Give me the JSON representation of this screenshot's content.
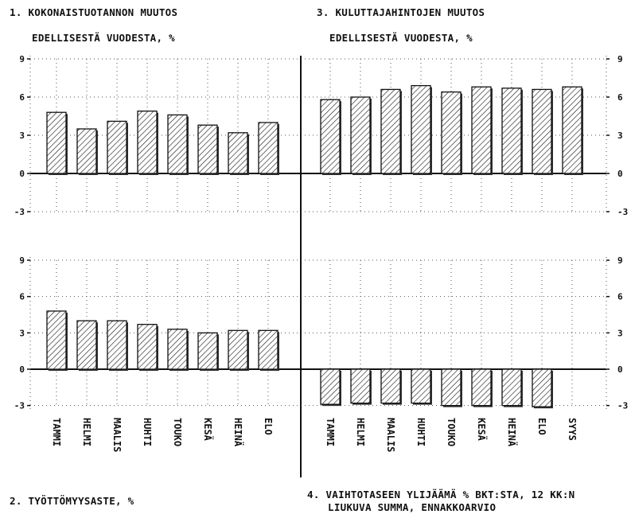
{
  "titles": {
    "t1_line1": "1. KOKONAISTUOTANNON MUUTOS",
    "t1_line2": "EDELLISESTÄ VUODESTA, %",
    "t3_line1": "3. KULUTTAJAHINTOJEN MUUTOS",
    "t3_line2": "EDELLISESTÄ VUODESTA, %",
    "t2": "2. TYÖTTÖMYYSASTE, %",
    "t4_line1": "4. VAIHTOTASEEN YLIJÄÄMÄ % BKT:STA, 12 KK:N",
    "t4_line2": "LIUKUVA SUMMA, ENNAKKOARVIO"
  },
  "chart_data": [
    {
      "type": "bar",
      "title": "1. KOKONAISTUOTANNON MUUTOS EDELLISESTÄ VUODESTA, %",
      "categories": [
        "TAMMI",
        "HELMI",
        "MAALIS",
        "HUHTI",
        "TOUKO",
        "KESÄ",
        "HEINÄ",
        "ELO"
      ],
      "values": [
        4.8,
        3.5,
        4.1,
        4.9,
        4.6,
        3.8,
        3.2,
        4.0
      ],
      "ylim": [
        -3,
        9
      ],
      "yticks": [
        "-3",
        "0",
        "3",
        "6",
        "9"
      ],
      "grid": true,
      "bar_fill": "hatched"
    },
    {
      "type": "bar",
      "title": "3. KULUTTAJAHINTOJEN MUUTOS EDELLISESTÄ VUODESTA, %",
      "categories": [
        "TAMMI",
        "HELMI",
        "MAALIS",
        "HUHTI",
        "TOUKO",
        "KESÄ",
        "HEINÄ",
        "ELO",
        "SYYS"
      ],
      "values": [
        5.8,
        6.0,
        6.6,
        6.9,
        6.4,
        6.8,
        6.7,
        6.6,
        6.8
      ],
      "ylim": [
        -3,
        9
      ],
      "yticks": [
        "-3",
        "0",
        "3",
        "6",
        "9"
      ],
      "grid": true,
      "bar_fill": "hatched"
    },
    {
      "type": "bar",
      "title": "2. TYÖTTÖMYYSASTE, %",
      "categories": [
        "TAMMI",
        "HELMI",
        "MAALIS",
        "HUHTI",
        "TOUKO",
        "KESÄ",
        "HEINÄ",
        "ELO"
      ],
      "values": [
        4.8,
        4.0,
        4.0,
        3.7,
        3.3,
        3.0,
        3.2,
        3.2
      ],
      "ylim": [
        -3,
        9
      ],
      "yticks": [
        "-3",
        "0",
        "3",
        "6",
        "9"
      ],
      "grid": true,
      "bar_fill": "hatched"
    },
    {
      "type": "bar",
      "title": "4. VAIHTOTASEEN YLIJÄÄMÄ % BKT:STA, 12 KK:N LIUKUVA SUMMA, ENNAKKOARVIO",
      "categories": [
        "TAMMI",
        "HELMI",
        "MAALIS",
        "HUHTI",
        "TOUKO",
        "KESÄ",
        "HEINÄ",
        "ELO",
        "SYYS"
      ],
      "values": [
        -2.9,
        -2.8,
        -2.8,
        -2.8,
        -3.0,
        -3.0,
        -3.0,
        -3.1,
        null
      ],
      "ylim": [
        -3,
        9
      ],
      "yticks": [
        "-3",
        "0",
        "3",
        "6",
        "9"
      ],
      "grid": true,
      "bar_fill": "hatched"
    }
  ]
}
